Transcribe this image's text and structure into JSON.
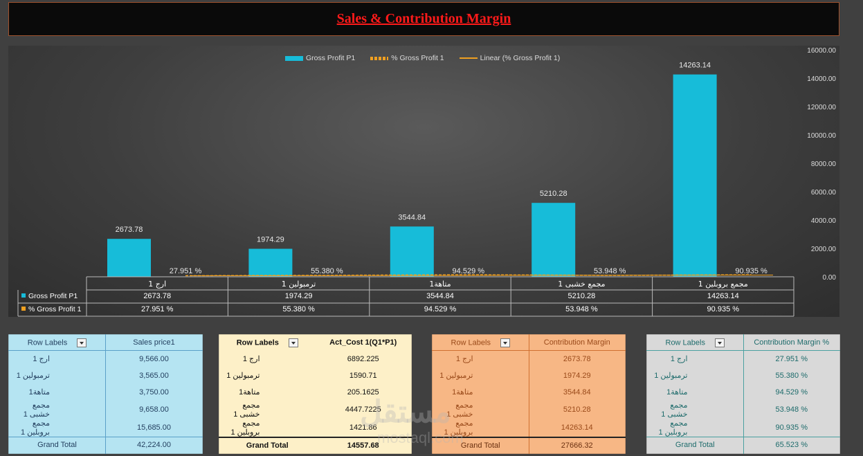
{
  "title": "Sales & Contribution Margin",
  "chart_data": {
    "type": "bar",
    "categories": [
      "ارج 1",
      "ترمبولين 1",
      "متاهة1",
      "مجمع خشبى 1",
      "مجمع بروبلين 1"
    ],
    "series": [
      {
        "name": "Gross Profit P1",
        "type": "bar",
        "values": [
          2673.78,
          1974.29,
          3544.84,
          5210.28,
          14263.14
        ],
        "labels": [
          "2673.78",
          "1974.29",
          "3544.84",
          "5210.28",
          "14263.14"
        ]
      },
      {
        "name": "% Gross Profit 1",
        "type": "line",
        "values": [
          27.951,
          55.38,
          94.529,
          53.948,
          90.935
        ],
        "labels": [
          "27.951 %",
          "55.380 %",
          "94.529 %",
          "53.948 %",
          "90.935 %"
        ]
      }
    ],
    "trendline": "Linear (% Gross Profit 1)",
    "ylim": [
      0,
      16000
    ],
    "yticks": [
      "0.00",
      "2000.00",
      "4000.00",
      "6000.00",
      "8000.00",
      "10000.00",
      "12000.00",
      "14000.00",
      "16000.00"
    ],
    "legend": [
      "Gross Profit P1",
      "% Gross Profit 1",
      "Linear (% Gross Profit 1)"
    ],
    "data_table": [
      {
        "name": "Gross Profit P1",
        "values": [
          "2673.78",
          "1974.29",
          "3544.84",
          "5210.28",
          "14263.14"
        ]
      },
      {
        "name": "% Gross Profit 1",
        "values": [
          "27.951 %",
          "55.380 %",
          "94.529 %",
          "53.948 %",
          "90.935 %"
        ]
      }
    ],
    "colors": {
      "bar": "#17bcd9",
      "line": "#f0a020"
    }
  },
  "pivots": [
    {
      "row_header": "Row Labels",
      "value_header": "Sales price1",
      "rows": [
        [
          "ارج 1",
          "9,566.00"
        ],
        [
          "ترمبولين 1",
          "3,565.00"
        ],
        [
          "متاهة1",
          "3,750.00"
        ],
        [
          "مجمع خشبى 1",
          "9,658.00"
        ],
        [
          "مجمع بروبلين 1",
          "15,685.00"
        ]
      ],
      "total_label": "Grand Total",
      "total": "42,224.00"
    },
    {
      "row_header": "Row Labels",
      "value_header": "Act_Cost 1(Q1*P1)",
      "rows": [
        [
          "ارج 1",
          "6892.225"
        ],
        [
          "ترمبولين 1",
          "1590.71"
        ],
        [
          "متاهة1",
          "205.1625"
        ],
        [
          "مجمع خشبى 1",
          "4447.7225"
        ],
        [
          "مجمع بروبلين 1",
          "1421.86"
        ]
      ],
      "total_label": "Grand Total",
      "total": "14557.68"
    },
    {
      "row_header": "Row Labels",
      "value_header": "Contribution Margin",
      "rows": [
        [
          "ارج 1",
          "2673.78"
        ],
        [
          "ترمبولين 1",
          "1974.29"
        ],
        [
          "متاهة1",
          "3544.84"
        ],
        [
          "مجمع خشبى 1",
          "5210.28"
        ],
        [
          "مجمع بروبلين 1",
          "14263.14"
        ]
      ],
      "total_label": "Grand Total",
      "total": "27666.32"
    },
    {
      "row_header": "Row Labels",
      "value_header": "Contribution Margin %",
      "rows": [
        [
          "ارج 1",
          "27.951 %"
        ],
        [
          "ترمبولين 1",
          "55.380 %"
        ],
        [
          "متاهة1",
          "94.529 %"
        ],
        [
          "مجمع خشبى 1",
          "53.948 %"
        ],
        [
          "مجمع بروبلين 1",
          "90.935 %"
        ]
      ],
      "total_label": "Grand Total",
      "total": "65.523 %"
    }
  ],
  "watermark": "مستقل",
  "watermark_sub": "mostaql.com"
}
